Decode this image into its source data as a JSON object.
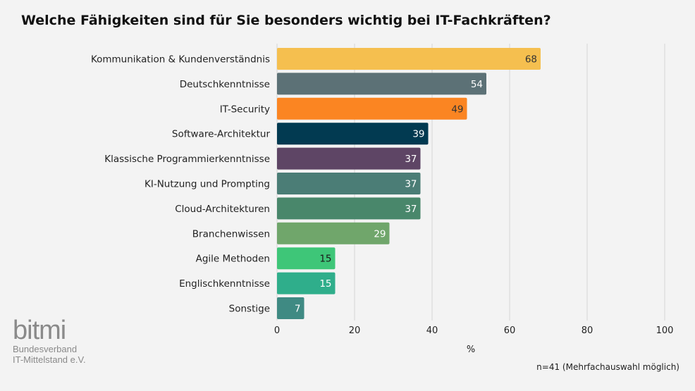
{
  "chart_data": {
    "type": "bar",
    "orientation": "horizontal",
    "title": "Welche Fähigkeiten sind für Sie besonders wichtig bei IT-Fachkräften?",
    "xlabel": "%",
    "ylabel": "",
    "xlim": [
      0,
      100
    ],
    "xticks": [
      0,
      20,
      40,
      60,
      80,
      100
    ],
    "grid": true,
    "categories": [
      "Kommunikation & Kundenverständnis",
      "Deutschkenntnisse",
      "IT-Security",
      "Software-Architektur",
      "Klassische Programmierkenntnisse",
      "KI-Nutzung und Prompting",
      "Cloud-Architekturen",
      "Branchenwissen",
      "Agile Methoden",
      "Englischkenntnisse",
      "Sonstige"
    ],
    "values": [
      68,
      54,
      49,
      39,
      37,
      37,
      37,
      29,
      15,
      15,
      7
    ],
    "colors": [
      "#f5bf4f",
      "#5c7176",
      "#fb8522",
      "#023a51",
      "#5e4565",
      "#4b7d76",
      "#49876b",
      "#70a66b",
      "#3ec678",
      "#2fae8b",
      "#3f8a83"
    ],
    "label_colors": [
      "#333333",
      "#ffffff",
      "#333333",
      "#ffffff",
      "#ffffff",
      "#ffffff",
      "#ffffff",
      "#ffffff",
      "#1a1a1a",
      "#ffffff",
      "#ffffff"
    ]
  },
  "footnote": "n=41 (Mehrfachauswahl möglich)",
  "logo": {
    "mark": "bitmi",
    "line1": "Bundesverband",
    "line2": "IT-Mittelstand e.V."
  }
}
